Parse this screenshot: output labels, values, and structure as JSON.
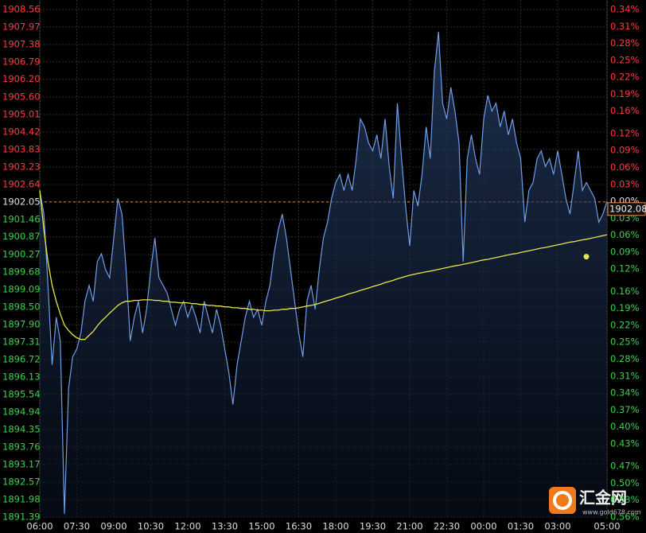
{
  "chart_data": {
    "type": "line",
    "reference": 1902.05,
    "xlim": [
      0,
      138
    ],
    "xticks": [
      {
        "value": 0,
        "label": "06:00"
      },
      {
        "value": 9,
        "label": "07:30"
      },
      {
        "value": 18,
        "label": "09:00"
      },
      {
        "value": 27,
        "label": "10:30"
      },
      {
        "value": 36,
        "label": "12:00"
      },
      {
        "value": 45,
        "label": "13:30"
      },
      {
        "value": 54,
        "label": "15:00"
      },
      {
        "value": 63,
        "label": "16:30"
      },
      {
        "value": 72,
        "label": "18:00"
      },
      {
        "value": 81,
        "label": "19:30"
      },
      {
        "value": 90,
        "label": "21:00"
      },
      {
        "value": 99,
        "label": "22:30"
      },
      {
        "value": 108,
        "label": "00:00"
      },
      {
        "value": 117,
        "label": "01:30"
      },
      {
        "value": 126,
        "label": "03:00"
      },
      {
        "value": 138,
        "label": "05:00"
      }
    ],
    "ylim": [
      1891.39,
      1908.56
    ],
    "yticks": [
      {
        "value": 1908.56,
        "label": "1908.56"
      },
      {
        "value": 1907.97,
        "label": "1907.97"
      },
      {
        "value": 1907.38,
        "label": "1907.38"
      },
      {
        "value": 1906.79,
        "label": "1906.79"
      },
      {
        "value": 1906.2,
        "label": "1906.20"
      },
      {
        "value": 1905.6,
        "label": "1905.60"
      },
      {
        "value": 1905.01,
        "label": "1905.01"
      },
      {
        "value": 1904.42,
        "label": "1904.42"
      },
      {
        "value": 1903.83,
        "label": "1903.83"
      },
      {
        "value": 1903.23,
        "label": "1903.23"
      },
      {
        "value": 1902.64,
        "label": "1902.64"
      },
      {
        "value": 1902.05,
        "label": "1902.05"
      },
      {
        "value": 1901.46,
        "label": "1901.46"
      },
      {
        "value": 1900.87,
        "label": "1900.87"
      },
      {
        "value": 1900.27,
        "label": "1900.27"
      },
      {
        "value": 1899.68,
        "label": "1899.68"
      },
      {
        "value": 1899.09,
        "label": "1899.09"
      },
      {
        "value": 1898.5,
        "label": "1898.50"
      },
      {
        "value": 1897.9,
        "label": "1897.90"
      },
      {
        "value": 1897.31,
        "label": "1897.31"
      },
      {
        "value": 1896.72,
        "label": "1896.72"
      },
      {
        "value": 1896.13,
        "label": "1896.13"
      },
      {
        "value": 1895.54,
        "label": "1895.54"
      },
      {
        "value": 1894.94,
        "label": "1894.94"
      },
      {
        "value": 1894.35,
        "label": "1894.35"
      },
      {
        "value": 1893.76,
        "label": "1893.76"
      },
      {
        "value": 1893.17,
        "label": "1893.17"
      },
      {
        "value": 1892.57,
        "label": "1892.57"
      },
      {
        "value": 1891.98,
        "label": "1891.98"
      },
      {
        "value": 1891.39,
        "label": "1891.39"
      }
    ],
    "y2lim": [
      -0.56,
      0.34
    ],
    "y2ticks": [
      {
        "value": 0.34,
        "label": "0.34%"
      },
      {
        "value": 0.31,
        "label": "0.31%"
      },
      {
        "value": 0.28,
        "label": "0.28%"
      },
      {
        "value": 0.25,
        "label": "0.25%"
      },
      {
        "value": 0.22,
        "label": "0.22%"
      },
      {
        "value": 0.19,
        "label": "0.19%"
      },
      {
        "value": 0.16,
        "label": "0.16%"
      },
      {
        "value": 0.12,
        "label": "0.12%"
      },
      {
        "value": 0.09,
        "label": "0.09%"
      },
      {
        "value": 0.06,
        "label": "0.06%"
      },
      {
        "value": 0.03,
        "label": "0.03%"
      },
      {
        "value": 0,
        "label": "0.00%"
      },
      {
        "value": -0.03,
        "label": "0.03%"
      },
      {
        "value": -0.06,
        "label": "0.06%"
      },
      {
        "value": -0.09,
        "label": "0.09%"
      },
      {
        "value": -0.12,
        "label": "0.12%"
      },
      {
        "value": -0.16,
        "label": "0.16%"
      },
      {
        "value": -0.19,
        "label": "0.19%"
      },
      {
        "value": -0.22,
        "label": "0.22%"
      },
      {
        "value": -0.25,
        "label": "0.25%"
      },
      {
        "value": -0.28,
        "label": "0.28%"
      },
      {
        "value": -0.31,
        "label": "0.31%"
      },
      {
        "value": -0.34,
        "label": "0.34%"
      },
      {
        "value": -0.37,
        "label": "0.37%"
      },
      {
        "value": -0.4,
        "label": "0.40%"
      },
      {
        "value": -0.43,
        "label": "0.43%"
      },
      {
        "value": -0.47,
        "label": "0.47%"
      },
      {
        "value": -0.5,
        "label": "0.50%"
      },
      {
        "value": -0.53,
        "label": "0.53%"
      },
      {
        "value": -0.56,
        "label": "0.56%"
      }
    ],
    "grid": true,
    "series": [
      {
        "color": "#6f9de6",
        "values": [
          1902.44,
          1901.64,
          1899.23,
          1896.54,
          1898.15,
          1897.35,
          1891.5,
          1895.74,
          1896.81,
          1897.08,
          1897.62,
          1898.69,
          1899.23,
          1898.69,
          1900.03,
          1900.3,
          1899.76,
          1899.49,
          1900.83,
          1902.17,
          1901.64,
          1899.76,
          1897.35,
          1898.15,
          1898.69,
          1897.62,
          1898.42,
          1899.76,
          1900.83,
          1899.49,
          1899.23,
          1898.96,
          1898.42,
          1897.88,
          1898.42,
          1898.69,
          1898.15,
          1898.55,
          1898.15,
          1897.62,
          1898.69,
          1898.15,
          1897.62,
          1898.42,
          1897.88,
          1897.08,
          1896.27,
          1895.2,
          1896.54,
          1897.35,
          1898.15,
          1898.69,
          1898.15,
          1898.42,
          1897.88,
          1898.69,
          1899.23,
          1900.3,
          1901.1,
          1901.64,
          1900.83,
          1899.76,
          1898.69,
          1897.62,
          1896.81,
          1898.69,
          1899.23,
          1898.42,
          1899.76,
          1900.83,
          1901.37,
          1902.17,
          1902.71,
          1902.98,
          1902.44,
          1902.98,
          1902.44,
          1903.52,
          1904.86,
          1904.59,
          1904.05,
          1903.78,
          1904.32,
          1903.52,
          1904.86,
          1903.25,
          1902.17,
          1905.39,
          1903.52,
          1901.91,
          1900.57,
          1902.44,
          1901.91,
          1902.98,
          1904.59,
          1903.52,
          1906.47,
          1907.81,
          1905.39,
          1904.86,
          1905.93,
          1905.13,
          1904.05,
          1900.03,
          1903.52,
          1904.32,
          1903.52,
          1902.98,
          1904.86,
          1905.66,
          1905.13,
          1905.39,
          1904.59,
          1905.13,
          1904.32,
          1904.86,
          1904.05,
          1903.52,
          1901.37,
          1902.44,
          1902.71,
          1903.52,
          1903.78,
          1903.25,
          1903.52,
          1902.98,
          1903.78,
          1902.98,
          1902.17,
          1901.64,
          1902.71,
          1903.78,
          1902.44,
          1902.71,
          1902.44,
          1902.17,
          1901.37,
          1901.64,
          1902.08
        ]
      },
      {
        "color": "#e6e64a",
        "values": [
          1902.44,
          1901.1,
          1900.03,
          1899.23,
          1898.69,
          1898.26,
          1897.88,
          1897.7,
          1897.56,
          1897.46,
          1897.4,
          1897.4,
          1897.54,
          1897.67,
          1897.86,
          1898.02,
          1898.15,
          1898.29,
          1898.42,
          1898.55,
          1898.64,
          1898.69,
          1898.69,
          1898.72,
          1898.72,
          1898.74,
          1898.74,
          1898.74,
          1898.72,
          1898.72,
          1898.69,
          1898.69,
          1898.66,
          1898.66,
          1898.64,
          1898.64,
          1898.64,
          1898.61,
          1898.61,
          1898.58,
          1898.58,
          1898.55,
          1898.55,
          1898.53,
          1898.53,
          1898.5,
          1898.5,
          1898.47,
          1898.47,
          1898.45,
          1898.45,
          1898.42,
          1898.42,
          1898.39,
          1898.39,
          1898.37,
          1898.37,
          1898.39,
          1898.39,
          1898.42,
          1898.42,
          1898.45,
          1898.45,
          1898.47,
          1898.5,
          1898.53,
          1898.55,
          1898.58,
          1898.62,
          1898.67,
          1898.71,
          1898.75,
          1898.8,
          1898.84,
          1898.88,
          1898.93,
          1898.97,
          1899.01,
          1899.06,
          1899.1,
          1899.14,
          1899.19,
          1899.23,
          1899.27,
          1899.32,
          1899.36,
          1899.4,
          1899.45,
          1899.49,
          1899.53,
          1899.57,
          1899.6,
          1899.63,
          1899.66,
          1899.69,
          1899.71,
          1899.74,
          1899.77,
          1899.8,
          1899.83,
          1899.86,
          1899.89,
          1899.91,
          1899.94,
          1899.97,
          1900.0,
          1900.03,
          1900.06,
          1900.09,
          1900.11,
          1900.14,
          1900.17,
          1900.2,
          1900.23,
          1900.26,
          1900.29,
          1900.31,
          1900.34,
          1900.37,
          1900.4,
          1900.43,
          1900.46,
          1900.49,
          1900.51,
          1900.54,
          1900.57,
          1900.6,
          1900.63,
          1900.66,
          1900.69,
          1900.71,
          1900.74,
          1900.77,
          1900.79,
          1900.82,
          1900.85,
          1900.88,
          1900.91,
          1900.94
        ]
      }
    ],
    "watermark": {
      "name": "汇金网",
      "url": "www.gold678.com"
    }
  }
}
